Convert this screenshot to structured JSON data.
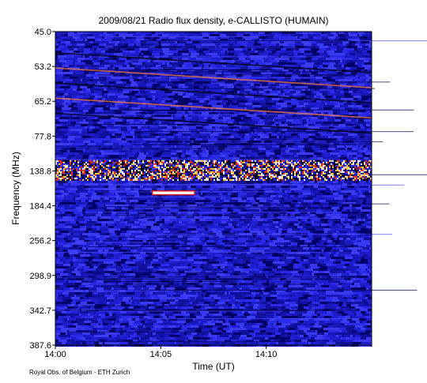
{
  "chart_data": {
    "type": "heatmap",
    "title": "2009/08/21  Radio flux density, e-CALLISTO (HUMAIN)",
    "xlabel": "Time (UT)",
    "ylabel": "Frequency (MHz)",
    "x_ticks": [
      "14:00",
      "14:05",
      "14:10"
    ],
    "x_tick_minutes": [
      0,
      5,
      10
    ],
    "x_range_minutes": [
      0,
      15
    ],
    "y_ticks": [
      "45.0",
      "53.2",
      "65.2",
      "77.8",
      "138.8",
      "184.4",
      "256.2",
      "298.9",
      "342.7",
      "387.6"
    ],
    "y_reversed": true,
    "colormap": [
      "#00007a",
      "#1a1acc",
      "#3030e0",
      "#000000",
      "#ffffff"
    ],
    "features": [
      {
        "label": "strong interference band",
        "freq_mhz": [
          120,
          150
        ],
        "time_min": [
          0,
          15
        ]
      },
      {
        "label": "narrow burst",
        "freq_mhz": [
          165,
          170
        ],
        "time_min": [
          4.6,
          6.6
        ]
      },
      {
        "label": "drifting lines",
        "freq_mhz": [
          50,
          75
        ],
        "time_min": [
          0,
          15
        ]
      }
    ]
  },
  "footer": {
    "credit": "Royal Obs. of Belgium - ETH Zurich"
  }
}
